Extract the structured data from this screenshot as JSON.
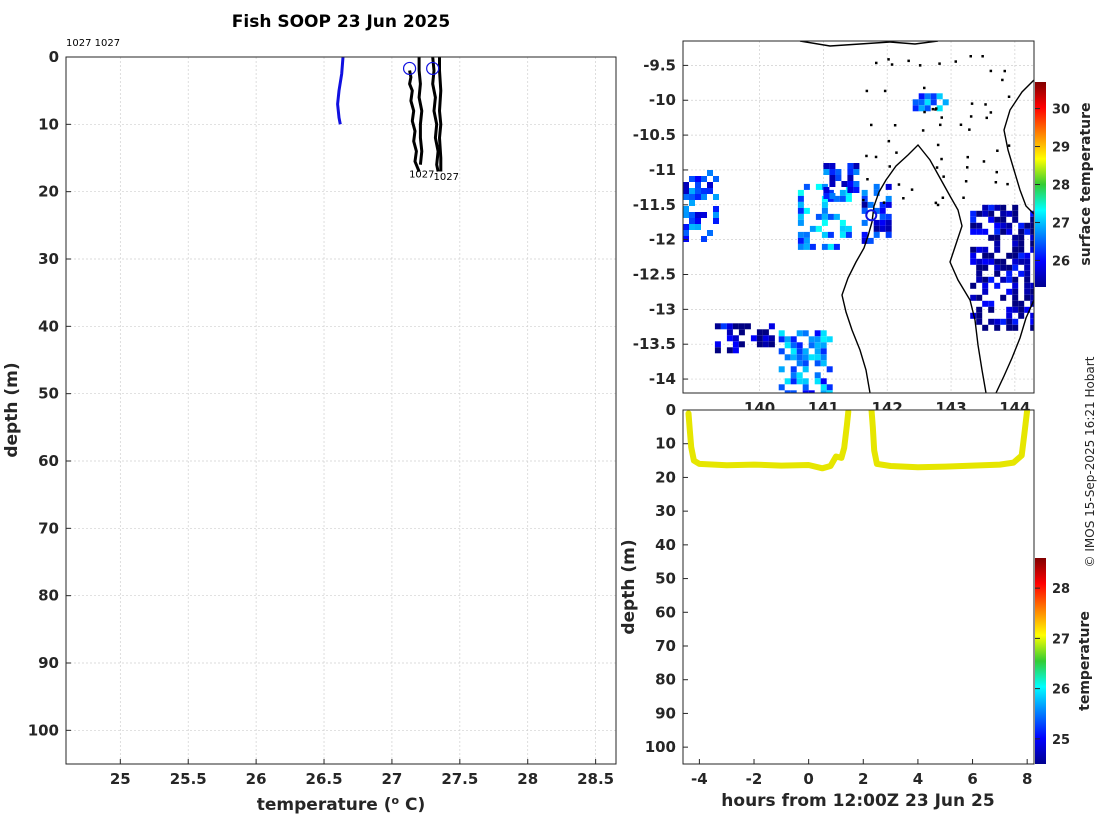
{
  "credit": "© IMOS 15-Sep-2025 16:21 Hobart",
  "chart_data": [
    {
      "id": "profile",
      "type": "line",
      "title": "Fish SOOP 23 Jun 2025",
      "xlabel": "temperature (",
      "xlabel_sup": "o",
      "xlabel_end": " C)",
      "ylabel": "depth (m)",
      "xlim": [
        24.6,
        28.65
      ],
      "ylim": [
        105,
        0
      ],
      "xticks": [
        25,
        25.5,
        26,
        26.5,
        27,
        27.5,
        28,
        28.5
      ],
      "xtick_labels": [
        "25",
        "25.5",
        "26",
        "26.5",
        "27",
        "27.5",
        "28",
        "28.5"
      ],
      "yticks": [
        0,
        10,
        20,
        30,
        40,
        50,
        60,
        70,
        80,
        90,
        100
      ],
      "ytick_labels": [
        "0",
        "10",
        "20",
        "30",
        "40",
        "50",
        "60",
        "70",
        "80",
        "90",
        "100"
      ],
      "grid": true,
      "top_annotation": "1027 1027",
      "series": [
        {
          "name": "blue-profile",
          "color": "#1010e0",
          "temperature": [
            26.64,
            26.63,
            26.61,
            26.6,
            26.61,
            26.62
          ],
          "depth": [
            0,
            2.5,
            5,
            7,
            9,
            10
          ]
        },
        {
          "name": "black-profile-1",
          "color": "#000000",
          "temperature": [
            27.13,
            27.14,
            27.13,
            27.15,
            27.14,
            27.16,
            27.15,
            27.17,
            27.16,
            27.18,
            27.17,
            27.19,
            27.2
          ],
          "depth": [
            2,
            3,
            4,
            5,
            6.5,
            8,
            9.5,
            11,
            12.5,
            14,
            15.5,
            16.5,
            17
          ]
        },
        {
          "name": "black-profile-2",
          "color": "#000000",
          "temperature": [
            27.2,
            27.2,
            27.21,
            27.2,
            27.22,
            27.21,
            27.21,
            27.22,
            27.21
          ],
          "depth": [
            0,
            2,
            4,
            6,
            8,
            10,
            12,
            14,
            16
          ]
        },
        {
          "name": "black-profile-3",
          "color": "#000000",
          "temperature": [
            27.3,
            27.31,
            27.3,
            27.32,
            27.31,
            27.33,
            27.32,
            27.34,
            27.33,
            27.34
          ],
          "depth": [
            0,
            2,
            4,
            6,
            8,
            10,
            12,
            14,
            16,
            17
          ]
        },
        {
          "name": "black-profile-4",
          "color": "#000000",
          "temperature": [
            27.35,
            27.35,
            27.36,
            27.35,
            27.36,
            27.35,
            27.36,
            27.36
          ],
          "depth": [
            0,
            2,
            5,
            8,
            10,
            12,
            15,
            17
          ]
        }
      ],
      "markers": [
        {
          "temperature": 27.13,
          "depth": 1.7,
          "color": "#1010e0"
        },
        {
          "temperature": 27.3,
          "depth": 1.7,
          "color": "#1010e0"
        }
      ],
      "annotations": [
        {
          "text": "1027",
          "temperature": 27.22,
          "depth": 17.3
        },
        {
          "text": "1027",
          "temperature": 27.4,
          "depth": 17.7
        }
      ]
    },
    {
      "id": "map",
      "type": "heatmap",
      "xlim": [
        138.8,
        144.3
      ],
      "ylim": [
        -14.2,
        -9.15
      ],
      "xticks": [
        140,
        141,
        142,
        143,
        144
      ],
      "xtick_labels": [
        "140",
        "141",
        "142",
        "143",
        "144"
      ],
      "yticks": [
        -9.5,
        -10,
        -10.5,
        -11,
        -11.5,
        -12,
        -12.5,
        -13,
        -13.5,
        -14
      ],
      "ytick_labels": [
        "-9.5",
        "-10",
        "-10.5",
        "-11",
        "-11.5",
        "-12",
        "-12.5",
        "-13",
        "-13.5",
        "-14"
      ],
      "grid": true,
      "colorbar": {
        "label": "surface temperature",
        "range": [
          25.3,
          30.7
        ],
        "ticks": [
          26,
          27,
          28,
          29,
          30
        ],
        "tick_labels": [
          "26",
          "27",
          "28",
          "29",
          "30"
        ]
      },
      "ship_position": {
        "lon": 141.75,
        "lat": -11.65
      },
      "sst_patches": [
        {
          "lon": [
            140.3,
            141.1
          ],
          "lat": [
            -14.2,
            -13.3
          ],
          "temp": 26.6
        },
        {
          "lon": [
            139.3,
            140.2
          ],
          "lat": [
            -13.6,
            -13.2
          ],
          "temp": 25.6
        },
        {
          "lon": [
            140.6,
            141.4
          ],
          "lat": [
            -12.1,
            -11.2
          ],
          "temp": 26.8
        },
        {
          "lon": [
            141.0,
            141.5
          ],
          "lat": [
            -11.4,
            -10.9
          ],
          "temp": 26.2
        },
        {
          "lon": [
            141.6,
            142.0
          ],
          "lat": [
            -12.0,
            -11.2
          ],
          "temp": 26.1
        },
        {
          "lon": [
            142.4,
            142.9
          ],
          "lat": [
            -10.1,
            -9.9
          ],
          "temp": 26.7
        },
        {
          "lon": [
            143.3,
            144.3
          ],
          "lat": [
            -13.3,
            -11.5
          ],
          "temp": 25.5
        },
        {
          "lon": [
            138.8,
            139.3
          ],
          "lat": [
            -12.0,
            -11.0
          ],
          "temp": 26.3
        }
      ]
    },
    {
      "id": "section",
      "type": "scatter",
      "xlabel": "hours from 12:00Z 23 Jun 25",
      "ylabel": "depth (m)",
      "xlim": [
        -4.6,
        8.25
      ],
      "ylim": [
        105,
        0
      ],
      "xticks": [
        -4,
        -2,
        0,
        2,
        4,
        6,
        8
      ],
      "xtick_labels": [
        "-4",
        "-2",
        "0",
        "2",
        "4",
        "6",
        "8"
      ],
      "yticks": [
        0,
        10,
        20,
        30,
        40,
        50,
        60,
        70,
        80,
        90,
        100
      ],
      "ytick_labels": [
        "0",
        "10",
        "20",
        "30",
        "40",
        "50",
        "60",
        "70",
        "80",
        "90",
        "100"
      ],
      "color": "#e6e600",
      "segments": [
        {
          "hours": [
            -4.4,
            -4.35,
            -4.3,
            -4.2,
            -4.0,
            -3.0,
            -2.0,
            -1.0,
            0.0,
            0.5,
            0.8,
            1.0,
            1.2,
            1.3,
            1.4,
            1.45
          ],
          "depth": [
            1,
            6,
            11,
            15,
            16,
            16.4,
            16.2,
            16.5,
            16.3,
            17.3,
            16.6,
            13.8,
            14.2,
            11.2,
            4.5,
            0.5
          ]
        },
        {
          "hours": [
            2.3,
            2.35,
            2.4,
            2.5,
            3.0,
            4.0,
            5.0,
            6.0,
            7.0,
            7.5,
            7.8,
            7.9,
            8.0
          ],
          "depth": [
            0,
            5,
            12,
            16,
            16.6,
            17,
            16.8,
            16.5,
            16.2,
            15.6,
            13.5,
            7,
            0
          ]
        }
      ],
      "colorbar": {
        "label": "temperature",
        "range": [
          24.5,
          28.6
        ],
        "ticks": [
          25,
          26,
          27,
          28
        ],
        "tick_labels": [
          "25",
          "26",
          "27",
          "28"
        ]
      }
    }
  ]
}
